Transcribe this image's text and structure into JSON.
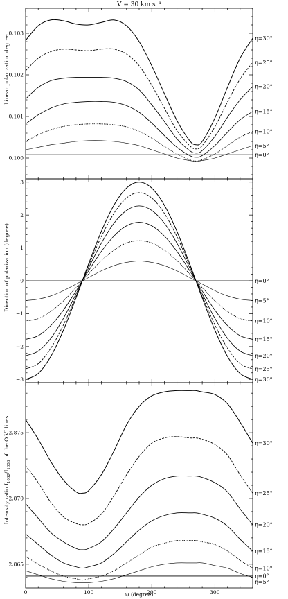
{
  "chart_data": [
    {
      "type": "line",
      "title": "V = 30 km s⁻¹",
      "xlabel": "",
      "ylabel": "Linear polarization degree",
      "xlim": [
        0,
        360
      ],
      "ylim": [
        0.0995,
        0.1036
      ],
      "xticks": [
        0,
        100,
        200,
        300
      ],
      "xtick_labels": [
        "",
        "",
        "",
        ""
      ],
      "yticks": [
        0.1,
        0.101,
        0.102,
        0.103
      ],
      "ytick_labels": [
        "0.100",
        "0.101",
        "0.102",
        "0.103"
      ],
      "x": [
        0,
        20,
        40,
        60,
        80,
        100,
        120,
        140,
        160,
        180,
        200,
        220,
        240,
        260,
        270,
        280,
        300,
        320,
        340,
        360
      ],
      "series": [
        {
          "name": "η=30°",
          "values": [
            0.10283,
            0.10318,
            0.10332,
            0.1033,
            0.10322,
            0.1032,
            0.10326,
            0.10332,
            0.10318,
            0.1028,
            0.10222,
            0.10155,
            0.1009,
            0.10042,
            0.10032,
            0.1004,
            0.10096,
            0.1017,
            0.1024,
            0.10288
          ]
        },
        {
          "name": "η=25°",
          "values": [
            0.1021,
            0.1024,
            0.10256,
            0.10262,
            0.1026,
            0.10258,
            0.10262,
            0.10262,
            0.1025,
            0.10222,
            0.10175,
            0.1012,
            0.10066,
            0.1003,
            0.10022,
            0.1003,
            0.10075,
            0.10135,
            0.1019,
            0.1023
          ]
        },
        {
          "name": "η=20°",
          "values": [
            0.10142,
            0.1017,
            0.10186,
            0.10192,
            0.10194,
            0.10194,
            0.10194,
            0.10192,
            0.10184,
            0.10164,
            0.10128,
            0.10088,
            0.10046,
            0.10018,
            0.10012,
            0.10018,
            0.10052,
            0.10098,
            0.1014,
            0.10172
          ]
        },
        {
          "name": "η=15°",
          "values": [
            0.10082,
            0.10104,
            0.1012,
            0.1013,
            0.10134,
            0.10136,
            0.10136,
            0.10134,
            0.10126,
            0.1011,
            0.10084,
            0.10054,
            0.10026,
            0.10006,
            0.10002,
            0.10006,
            0.1003,
            0.10062,
            0.10092,
            0.10112
          ]
        },
        {
          "name": "η=10°",
          "values": [
            0.1004,
            0.10056,
            0.10068,
            0.10076,
            0.1008,
            0.10082,
            0.10082,
            0.1008,
            0.10075,
            0.10064,
            0.10048,
            0.10028,
            0.1001,
            0.09996,
            0.09993,
            0.09996,
            0.1001,
            0.1003,
            0.1005,
            0.10064
          ]
        },
        {
          "name": "η=5°",
          "values": [
            0.1002,
            0.10026,
            0.10032,
            0.10036,
            0.1004,
            0.10042,
            0.10042,
            0.1004,
            0.10036,
            0.1003,
            0.1002,
            0.1001,
            0.1,
            0.09994,
            0.09992,
            0.09994,
            0.1,
            0.1001,
            0.1002,
            0.1003
          ]
        },
        {
          "name": "η=0°",
          "values": [
            0.10008,
            0.10008,
            0.10008,
            0.10008,
            0.10008,
            0.10008,
            0.10008,
            0.10008,
            0.10008,
            0.10008,
            0.10008,
            0.10008,
            0.10008,
            0.10008,
            0.10008,
            0.10008,
            0.10008,
            0.10008,
            0.10008,
            0.10008
          ]
        }
      ],
      "grid": false,
      "legend": "curve labels at right edge"
    },
    {
      "type": "line",
      "title": "",
      "xlabel": "",
      "ylabel": "Direction of polarization (degree)",
      "xlim": [
        0,
        360
      ],
      "ylim": [
        -3.1,
        3.1
      ],
      "xticks": [
        0,
        100,
        200,
        300
      ],
      "xtick_labels": [
        "",
        "",
        "",
        ""
      ],
      "yticks": [
        -3,
        -2,
        -1,
        0,
        1,
        2,
        3
      ],
      "ytick_labels": [
        "−3",
        "−2",
        "−1",
        "0",
        "1",
        "2",
        "3"
      ],
      "x": [
        0,
        20,
        40,
        60,
        80,
        90,
        100,
        120,
        140,
        160,
        180,
        200,
        220,
        240,
        260,
        270,
        280,
        300,
        320,
        340,
        360
      ],
      "series": [
        {
          "name": "η=0°",
          "values": [
            0,
            0,
            0,
            0,
            0,
            0,
            0,
            0,
            0,
            0,
            0,
            0,
            0,
            0,
            0,
            0,
            0,
            0,
            0,
            0,
            0
          ]
        },
        {
          "name": "η=5°",
          "values": [
            -0.6,
            -0.56,
            -0.46,
            -0.3,
            -0.1,
            0.0,
            0.1,
            0.3,
            0.46,
            0.56,
            0.6,
            0.56,
            0.46,
            0.3,
            0.1,
            0.0,
            -0.1,
            -0.3,
            -0.46,
            -0.56,
            -0.6
          ]
        },
        {
          "name": "η=10°",
          "values": [
            -1.22,
            -1.15,
            -0.93,
            -0.61,
            -0.21,
            0.0,
            0.21,
            0.61,
            0.93,
            1.15,
            1.22,
            1.15,
            0.93,
            0.61,
            0.21,
            0.0,
            -0.21,
            -0.61,
            -0.93,
            -1.15,
            -1.22
          ]
        },
        {
          "name": "η=15°",
          "values": [
            -1.78,
            -1.67,
            -1.36,
            -0.89,
            -0.31,
            0.0,
            0.31,
            0.89,
            1.36,
            1.67,
            1.78,
            1.67,
            1.36,
            0.89,
            0.31,
            0.0,
            -0.31,
            -0.89,
            -1.36,
            -1.67,
            -1.78
          ]
        },
        {
          "name": "η=20°",
          "values": [
            -2.28,
            -2.14,
            -1.75,
            -1.14,
            -0.4,
            0.0,
            0.4,
            1.14,
            1.75,
            2.14,
            2.28,
            2.14,
            1.75,
            1.14,
            0.4,
            0.0,
            -0.4,
            -1.14,
            -1.75,
            -2.14,
            -2.28
          ]
        },
        {
          "name": "η=25°",
          "values": [
            -2.68,
            -2.52,
            -2.05,
            -1.34,
            -0.47,
            0.0,
            0.47,
            1.34,
            2.05,
            2.52,
            2.68,
            2.52,
            2.05,
            1.34,
            0.47,
            0.0,
            -0.47,
            -1.34,
            -2.05,
            -2.52,
            -2.68
          ]
        },
        {
          "name": "η=30°",
          "values": [
            -3.0,
            -2.82,
            -2.3,
            -1.5,
            -0.52,
            0.0,
            0.52,
            1.5,
            2.3,
            2.82,
            3.0,
            2.82,
            2.3,
            1.5,
            0.52,
            0.0,
            -0.52,
            -1.5,
            -2.3,
            -2.82,
            -3.0
          ]
        }
      ],
      "grid": false,
      "legend": "curve labels at right edge"
    },
    {
      "type": "line",
      "title": "",
      "xlabel": "ψ (degree)",
      "ylabel": "Intensity ratio I₁₀₃₂/I₁₀₃₈ of the O VI lines",
      "ylabel_main": "Intensity ratio I",
      "ylabel_sub1": "1032",
      "ylabel_mid": "/I",
      "ylabel_sub2": "1038",
      "ylabel_tail": " of the O VI lines",
      "xlim": [
        0,
        360
      ],
      "ylim": [
        2.8632,
        2.8788
      ],
      "xticks": [
        0,
        100,
        200,
        300
      ],
      "xtick_labels": [
        "0",
        "100",
        "200",
        "300"
      ],
      "yticks": [
        2.865,
        2.87,
        2.875
      ],
      "ytick_labels": [
        "2.865",
        "2.870",
        "2.875"
      ],
      "x": [
        0,
        20,
        40,
        60,
        80,
        90,
        100,
        120,
        140,
        160,
        180,
        200,
        220,
        240,
        260,
        270,
        280,
        300,
        320,
        340,
        360
      ],
      "series": [
        {
          "name": "η=30°",
          "values": [
            2.876,
            2.8745,
            2.8728,
            2.8714,
            2.8705,
            2.8704,
            2.8706,
            2.8718,
            2.8736,
            2.8756,
            2.877,
            2.8778,
            2.8781,
            2.8782,
            2.8782,
            2.8782,
            2.8781,
            2.8779,
            2.8772,
            2.8758,
            2.8742
          ]
        },
        {
          "name": "η=25°",
          "values": [
            2.8725,
            2.8712,
            2.8697,
            2.8686,
            2.8681,
            2.868,
            2.8681,
            2.8688,
            2.8702,
            2.8718,
            2.8732,
            2.8742,
            2.8746,
            2.8747,
            2.8746,
            2.8746,
            2.8745,
            2.8741,
            2.8733,
            2.8718,
            2.8704
          ]
        },
        {
          "name": "η=20°",
          "values": [
            2.8696,
            2.8685,
            2.8674,
            2.8667,
            2.8662,
            2.8661,
            2.8662,
            2.8667,
            2.8677,
            2.8689,
            2.8701,
            2.871,
            2.8715,
            2.8717,
            2.8717,
            2.8717,
            2.8716,
            2.8712,
            2.8705,
            2.8692,
            2.868
          ]
        },
        {
          "name": "η=15°",
          "values": [
            2.8673,
            2.8665,
            2.8657,
            2.8651,
            2.8648,
            2.8647,
            2.8648,
            2.8651,
            2.8658,
            2.8667,
            2.8676,
            2.8683,
            2.8687,
            2.8689,
            2.8689,
            2.8689,
            2.8688,
            2.8685,
            2.8679,
            2.8669,
            2.866
          ]
        },
        {
          "name": "η=10°",
          "values": [
            2.8656,
            2.865,
            2.8645,
            2.8641,
            2.8639,
            2.8638,
            2.8639,
            2.8641,
            2.8645,
            2.8651,
            2.8657,
            2.8663,
            2.8666,
            2.8668,
            2.8668,
            2.8668,
            2.8667,
            2.8665,
            2.866,
            2.8653,
            2.8647
          ]
        },
        {
          "name": "η=5°",
          "values": [
            2.8645,
            2.8642,
            2.8639,
            2.8637,
            2.8636,
            2.8636,
            2.8636,
            2.8637,
            2.8639,
            2.8642,
            2.8645,
            2.8648,
            2.865,
            2.8651,
            2.8651,
            2.8651,
            2.8651,
            2.8649,
            2.8647,
            2.8643,
            2.864
          ]
        },
        {
          "name": "η=0°",
          "values": [
            2.8641,
            2.8641,
            2.8641,
            2.8641,
            2.8641,
            2.8641,
            2.8641,
            2.8641,
            2.8641,
            2.8641,
            2.8641,
            2.8641,
            2.8641,
            2.8641,
            2.8641,
            2.8641,
            2.8641,
            2.8641,
            2.8641,
            2.8641,
            2.8641
          ]
        }
      ],
      "grid": false,
      "legend": "curve labels at right edge"
    }
  ]
}
